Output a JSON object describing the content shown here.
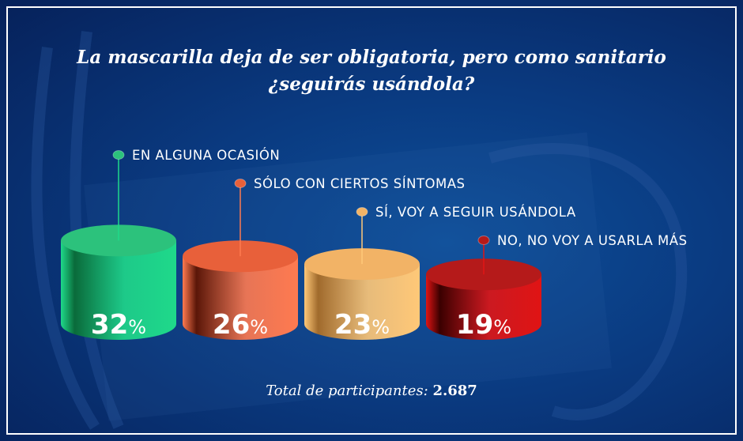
{
  "title_line1": "La mascarilla deja de ser obligatoria, pero como sanitario",
  "title_line2": "¿seguirás usándola?",
  "chart_data": {
    "type": "bar",
    "style": "3d-cylinder",
    "categories": [
      "EN ALGUNA OCASIÓN",
      "SÓLO CON CIERTOS SÍNTOMAS",
      "SÍ, VOY A SEGUIR USÁNDOLA",
      "NO, NO VOY A USARLA MÁS"
    ],
    "values": [
      32,
      26,
      23,
      19
    ],
    "unit": "%",
    "colors": [
      "#1fd98a",
      "#ff7a50",
      "#ffc878",
      "#e01414"
    ],
    "dark_colors": [
      "#0a6a3a",
      "#5a1608",
      "#a06a2c",
      "#3a0000"
    ],
    "top_colors": [
      "#2cc27c",
      "#e8603a",
      "#f2b366",
      "#b51a1a"
    ]
  },
  "footer": {
    "total_label": "Total de participantes:",
    "total_value": "2.687"
  }
}
